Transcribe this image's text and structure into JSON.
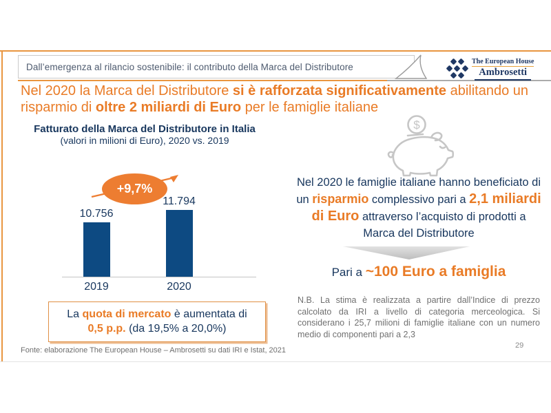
{
  "header": {
    "breadcrumb": "Dall’emergenza al rilancio sostenibile: il contributo della Marca del Distributore",
    "logo": {
      "line1": "The European House",
      "line2": "Ambrosetti"
    }
  },
  "title": {
    "part1": "Nel 2020 la Marca del Distributore ",
    "part2": "si è rafforzata significativamente",
    "part3": " abilitando un risparmio di ",
    "part4": "oltre 2 miliardi di Euro",
    "part5": " per le famiglie italiane"
  },
  "chart_data": {
    "type": "bar",
    "title": "Fatturato della Marca del Distributore in Italia",
    "subtitle": "(valori in milioni di Euro), 2020 vs. 2019",
    "categories": [
      "2019",
      "2020"
    ],
    "values": [
      10756,
      11794
    ],
    "value_labels": [
      "10.756",
      "11.794"
    ],
    "growth_annotation": "+9,7%",
    "bar_color": "#0D4A82",
    "grid": false,
    "legend": false,
    "ylim": [
      6200,
      12200
    ]
  },
  "market_share_box": {
    "part1": "La ",
    "part2": "quota di mercato",
    "part3": " è aumentata di ",
    "part4": "0,5 p.p.",
    "part5": " (da 19,5% a 20,0%)"
  },
  "savings": {
    "part1": "Nel 2020 le famiglie italiane hanno beneficiato di un ",
    "part2": "risparmio",
    "part3": " complessivo pari a ",
    "part4": "2,1 miliardi di Euro",
    "part5": " attraverso l’acquisto di prodotti a Marca del Distributore"
  },
  "per_family": {
    "prefix": "Pari a ",
    "highlight": "~100 Euro a famiglia"
  },
  "note": "N.B. La stima è realizzata a partire dall’Indice di prezzo calcolato da IRI a livello di categoria merceologica. Si considerano i 25,7 milioni di famiglie italiane con un numero medio di componenti pari a 2,3",
  "footer": {
    "source": "Fonte: elaborazione The European House – Ambrosetti su dati IRI e Istat, 2021",
    "page_number": "29"
  },
  "icons": {
    "piggy_bank": "piggy-bank-icon",
    "coin": "dollar-coin-icon",
    "sail": "ambrosetti-sail-icon",
    "logo_glyph": "ambrosetti-knot-icon",
    "growth_arrow": "growth-arrow-icon",
    "chevron": "chevron-down-icon"
  },
  "colors": {
    "accent_orange": "#E97B26",
    "ellipse_orange": "#ED7D31",
    "navy_text": "#17365D",
    "bar_navy": "#0D4A82",
    "gray_text": "#707070",
    "frame_orange": "#E9953F"
  }
}
